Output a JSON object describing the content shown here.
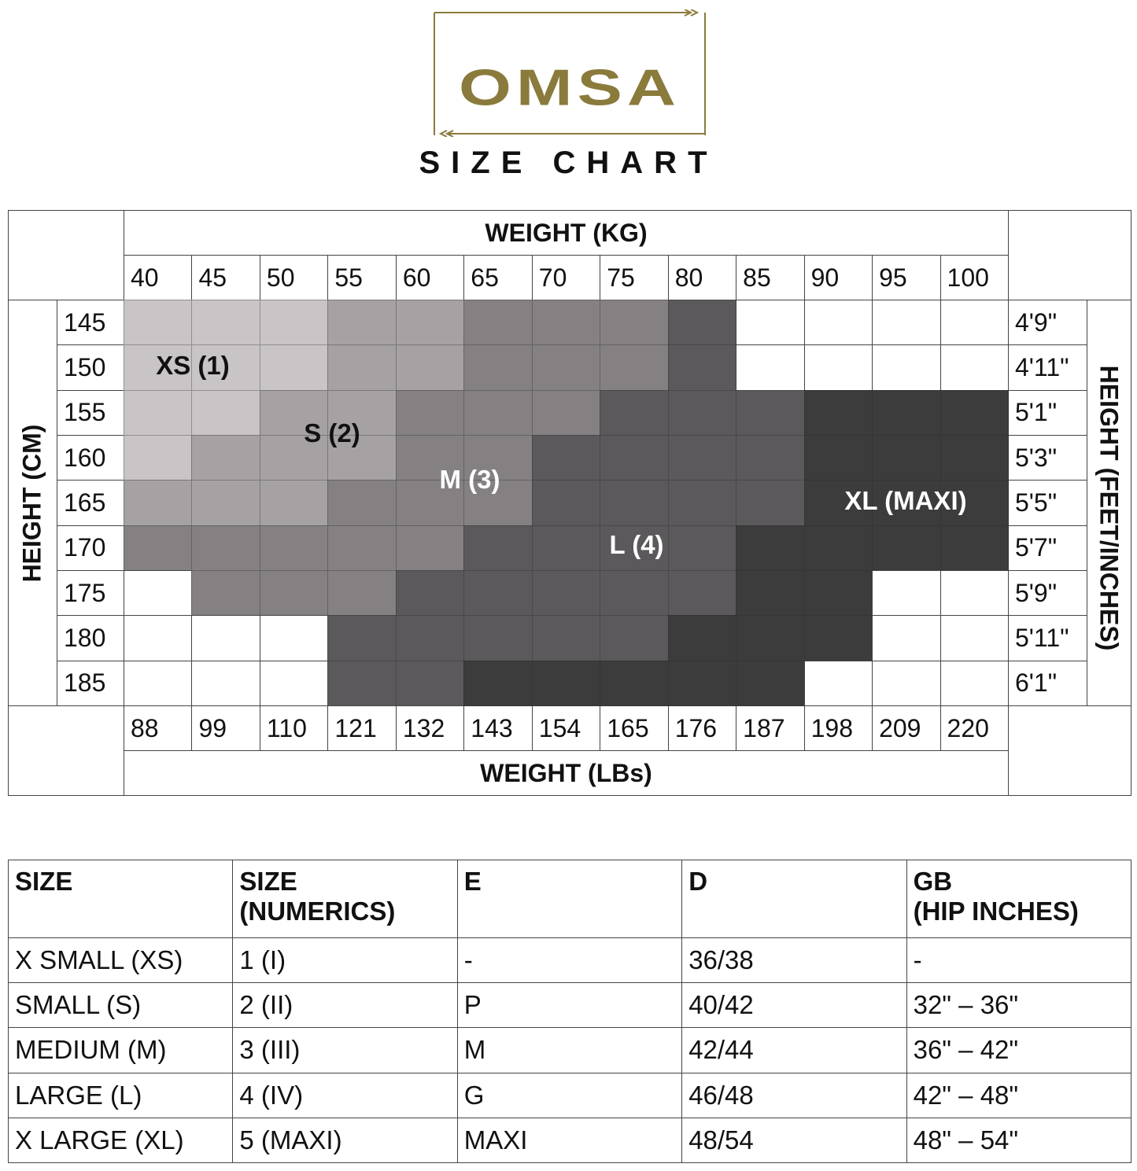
{
  "logo": {
    "text": "OMSA",
    "color": "#8a7a3c"
  },
  "title": "SIZE CHART",
  "chart": {
    "weight_kg_label": "WEIGHT (KG)",
    "weight_lbs_label": "WEIGHT (LBs)",
    "height_cm_label": "HEIGHT (CM)",
    "height_ft_label": "HEIGHT (FEET/INCHES)",
    "weights_kg": [
      "40",
      "45",
      "50",
      "55",
      "60",
      "65",
      "70",
      "75",
      "80",
      "85",
      "90",
      "95",
      "100"
    ],
    "weights_lbs": [
      "88",
      "99",
      "110",
      "121",
      "132",
      "143",
      "154",
      "165",
      "176",
      "187",
      "198",
      "209",
      "220"
    ],
    "heights_cm": [
      "145",
      "150",
      "155",
      "160",
      "165",
      "170",
      "175",
      "180",
      "185"
    ],
    "heights_ft": [
      "4'9\"",
      "4'11\"",
      "5'1\"",
      "5'3\"",
      "5'5\"",
      "5'7\"",
      "5'9\"",
      "5'11\"",
      "6'1\""
    ],
    "size_labels": [
      "XS (1)",
      "S (2)",
      "M (3)",
      "L (4)",
      "XL (MAXI)"
    ],
    "size_colors": [
      "#ffffff",
      "#c9c5c7",
      "#a6a2a4",
      "#858183",
      "#5b595b",
      "#3d3c3d"
    ],
    "size_label_colors": [
      "#111111",
      "#111111",
      "#ffffff",
      "#ffffff",
      "#ffffff"
    ],
    "grid": [
      [
        1,
        1,
        1,
        2,
        2,
        3,
        3,
        3,
        4,
        0,
        0,
        0,
        0
      ],
      [
        1,
        1,
        1,
        2,
        2,
        3,
        3,
        3,
        4,
        0,
        0,
        0,
        0
      ],
      [
        1,
        1,
        2,
        2,
        3,
        3,
        3,
        4,
        4,
        4,
        5,
        5,
        5
      ],
      [
        1,
        2,
        2,
        2,
        3,
        3,
        4,
        4,
        4,
        4,
        5,
        5,
        5
      ],
      [
        2,
        2,
        2,
        3,
        3,
        3,
        4,
        4,
        4,
        4,
        5,
        5,
        5
      ],
      [
        3,
        3,
        3,
        3,
        3,
        4,
        4,
        4,
        4,
        5,
        5,
        5,
        5
      ],
      [
        0,
        3,
        3,
        3,
        4,
        4,
        4,
        4,
        4,
        5,
        5,
        0,
        0
      ],
      [
        0,
        0,
        0,
        4,
        4,
        4,
        4,
        4,
        5,
        5,
        5,
        0,
        0
      ],
      [
        0,
        0,
        0,
        4,
        4,
        5,
        5,
        5,
        5,
        5,
        0,
        0,
        0
      ]
    ]
  },
  "conversion": {
    "headers": [
      "SIZE",
      "SIZE\n(NUMERICS)",
      "E",
      "D",
      "GB\n(HIP INCHES)"
    ],
    "rows": [
      [
        "X SMALL (XS)",
        "1 (I)",
        "-",
        "36/38",
        "-"
      ],
      [
        "SMALL (S)",
        "2 (II)",
        "P",
        "40/42",
        "32\" – 36\""
      ],
      [
        "MEDIUM (M)",
        "3 (III)",
        "M",
        "42/44",
        "36\" – 42\""
      ],
      [
        "LARGE (L)",
        "4 (IV)",
        "G",
        "46/48",
        "42\" – 48\""
      ],
      [
        "X LARGE (XL)",
        "5 (MAXI)",
        "MAXI",
        "48/54",
        "48\" – 54\""
      ]
    ]
  }
}
